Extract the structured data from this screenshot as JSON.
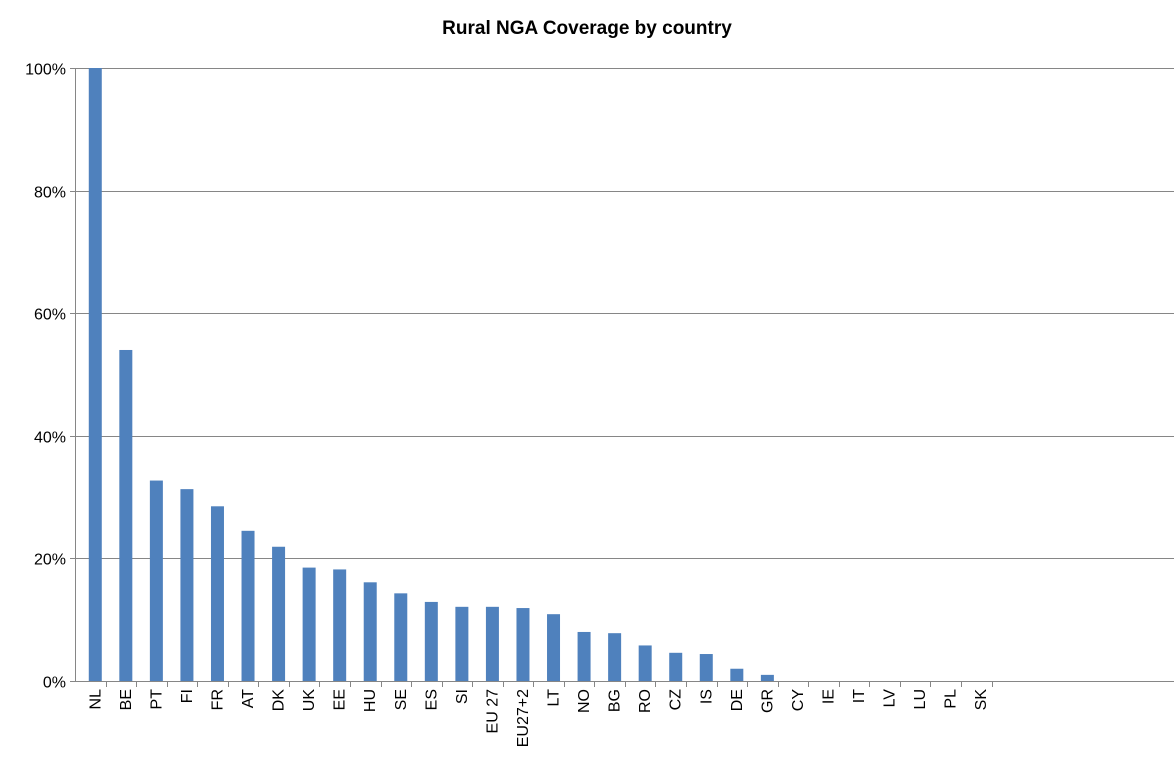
{
  "chart_data": {
    "type": "bar",
    "title": "Rural NGA Coverage by country",
    "xlabel": "",
    "ylabel": "",
    "ylim": [
      0,
      100
    ],
    "y_ticks": [
      "0%",
      "20%",
      "40%",
      "60%",
      "80%",
      "100%"
    ],
    "grid": true,
    "legend": "none",
    "categories": [
      "NL",
      "BE",
      "PT",
      "FI",
      "FR",
      "AT",
      "DK",
      "UK",
      "EE",
      "HU",
      "SE",
      "ES",
      "SI",
      "EU 27",
      "EU27+2",
      "LT",
      "NO",
      "BG",
      "RO",
      "CZ",
      "IS",
      "DE",
      "GR",
      "CY",
      "IE",
      "IT",
      "LV",
      "LU",
      "PL",
      "SK"
    ],
    "values": [
      100,
      54,
      32.7,
      31.3,
      28.5,
      24.5,
      21.9,
      18.5,
      18.2,
      16.1,
      14.3,
      12.9,
      12.1,
      12.1,
      11.9,
      10.9,
      8,
      7.8,
      5.8,
      4.6,
      4.4,
      2,
      1,
      0,
      0,
      0,
      0,
      0,
      0,
      0
    ],
    "bar_color": "#4F81BD",
    "grid_color": "#868686"
  }
}
